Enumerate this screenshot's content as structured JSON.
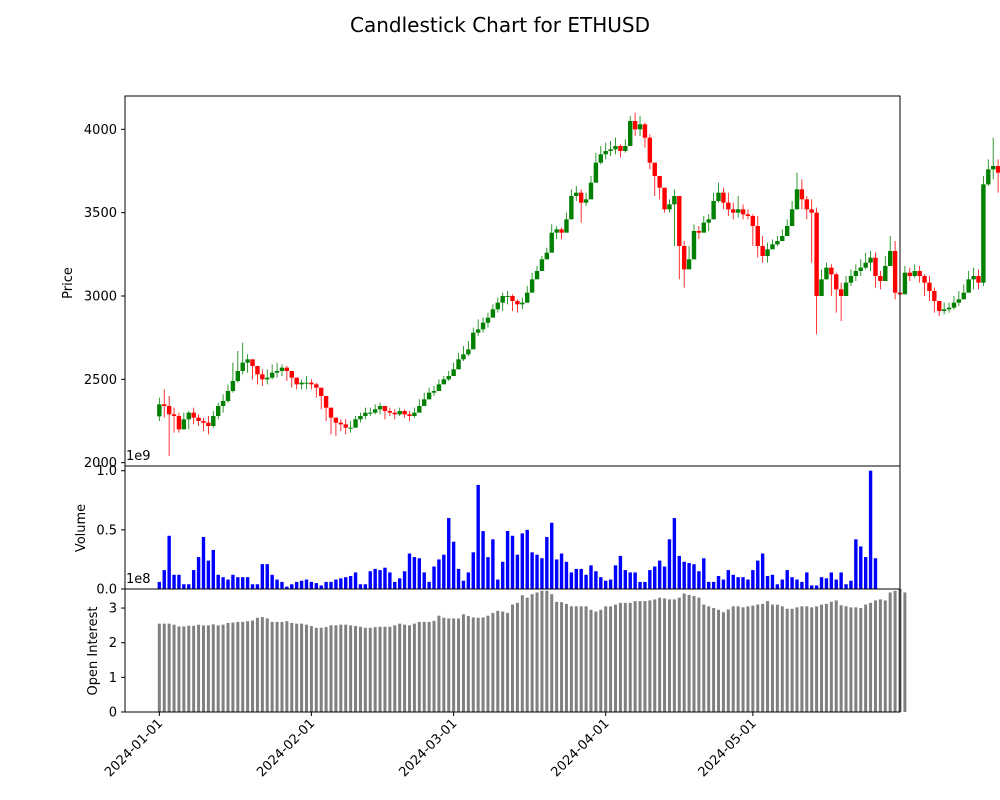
{
  "chart_data": {
    "type": "candlestick",
    "title": "Candlestick Chart for ETHUSD",
    "colors": {
      "up": "#008000",
      "down": "#ff0000",
      "volume": "#0000ff",
      "open_interest": "#808080"
    },
    "x_ticks": [
      "2024-01-01",
      "2024-02-01",
      "2024-03-01",
      "2024-04-01",
      "2024-05-01"
    ],
    "x_range": [
      -7,
      151
    ],
    "panels": [
      {
        "name": "price",
        "ylabel": "Price",
        "ylim": [
          1980,
          4200
        ],
        "yticks": [
          2000,
          2500,
          3000,
          3500,
          4000
        ],
        "tick_labels": [
          "2000",
          "2500",
          "3000",
          "3500",
          "4000"
        ]
      },
      {
        "name": "volume",
        "ylabel": "Volume",
        "ylim": [
          0,
          1.04
        ],
        "yticks": [
          0,
          0.5,
          1.0
        ],
        "tick_labels": [
          "0.0",
          "0.5",
          "1.0"
        ],
        "offset_label": "1e9"
      },
      {
        "name": "open_interest",
        "ylabel": "Open Interest",
        "ylim": [
          0,
          3.55
        ],
        "yticks": [
          0,
          1,
          2,
          3
        ],
        "tick_labels": [
          "0",
          "1",
          "2",
          "3"
        ],
        "offset_label": "1e8"
      }
    ],
    "close": [
      2350,
      2340,
      2290,
      2280,
      2200,
      2260,
      2300,
      2270,
      2250,
      2240,
      2220,
      2280,
      2340,
      2370,
      2430,
      2490,
      2550,
      2600,
      2620,
      2580,
      2530,
      2500,
      2510,
      2540,
      2550,
      2570,
      2550,
      2510,
      2470,
      2480,
      2480,
      2470,
      2450,
      2400,
      2330,
      2270,
      2240,
      2230,
      2210,
      2210,
      2260,
      2280,
      2300,
      2300,
      2320,
      2340,
      2310,
      2300,
      2290,
      2310,
      2290,
      2280,
      2300,
      2340,
      2380,
      2420,
      2430,
      2470,
      2500,
      2520,
      2560,
      2620,
      2650,
      2680,
      2780,
      2800,
      2840,
      2870,
      2920,
      2960,
      3000,
      3000,
      2970,
      2950,
      2960,
      3020,
      3100,
      3150,
      3220,
      3260,
      3380,
      3400,
      3380,
      3460,
      3600,
      3620,
      3560,
      3580,
      3680,
      3800,
      3850,
      3870,
      3880,
      3900,
      3870,
      3900,
      4050,
      4000,
      4030,
      3950,
      3800,
      3720,
      3650,
      3520,
      3550,
      3600,
      3300,
      3160,
      3220,
      3390,
      3380,
      3440,
      3460,
      3570,
      3620,
      3560,
      3520,
      3500,
      3520,
      3490,
      3480,
      3420,
      3300,
      3240,
      3280,
      3310,
      3330,
      3360,
      3420,
      3520,
      3640,
      3580,
      3520,
      3500,
      3000,
      3100,
      3170,
      3130,
      3040,
      3000,
      3080,
      3120,
      3150,
      3170,
      3200,
      3230,
      3120,
      3090,
      3180,
      3270,
      3020,
      3010,
      3140,
      3120,
      3150,
      3120,
      3080,
      3030,
      2970,
      2910,
      2920,
      2930,
      2960,
      2980,
      3020,
      3100,
      3120,
      3080,
      3670,
      3760,
      3780,
      3740
    ],
    "high": [
      2390,
      2440,
      2400,
      2330,
      2300,
      2300,
      2310,
      2330,
      2290,
      2270,
      2280,
      2310,
      2360,
      2410,
      2470,
      2600,
      2670,
      2720,
      2650,
      2620,
      2580,
      2560,
      2560,
      2590,
      2600,
      2590,
      2580,
      2550,
      2510,
      2500,
      2520,
      2500,
      2480,
      2430,
      2360,
      2300,
      2270,
      2260,
      2260,
      2250,
      2280,
      2300,
      2330,
      2330,
      2350,
      2360,
      2340,
      2330,
      2320,
      2330,
      2320,
      2310,
      2330,
      2380,
      2420,
      2450,
      2460,
      2500,
      2520,
      2550,
      2600,
      2660,
      2700,
      2730,
      2810,
      2860,
      2870,
      2900,
      2950,
      2990,
      3020,
      3030,
      3010,
      2980,
      2990,
      3060,
      3140,
      3180,
      3240,
      3290,
      3430,
      3420,
      3410,
      3500,
      3640,
      3660,
      3640,
      3620,
      3720,
      3860,
      3900,
      3920,
      3930,
      3950,
      3910,
      3940,
      4080,
      4100,
      4080,
      4040,
      3970,
      3770,
      3720,
      3630,
      3580,
      3640,
      3540,
      3330,
      3300,
      3430,
      3420,
      3480,
      3490,
      3620,
      3680,
      3650,
      3620,
      3560,
      3600,
      3550,
      3520,
      3490,
      3480,
      3360,
      3320,
      3340,
      3360,
      3400,
      3460,
      3570,
      3740,
      3700,
      3600,
      3580,
      3530,
      3160,
      3200,
      3190,
      3140,
      3080,
      3120,
      3160,
      3190,
      3220,
      3260,
      3270,
      3260,
      3150,
      3240,
      3360,
      3330,
      3050,
      3180,
      3170,
      3190,
      3180,
      3130,
      3120,
      3050,
      2970,
      2960,
      2960,
      3000,
      3030,
      3070,
      3150,
      3170,
      3160,
      3720,
      3820,
      3950,
      3820
    ],
    "low": [
      2250,
      2270,
      2040,
      2180,
      2180,
      2200,
      2200,
      2230,
      2220,
      2190,
      2170,
      2210,
      2260,
      2300,
      2360,
      2420,
      2480,
      2530,
      2540,
      2500,
      2470,
      2460,
      2470,
      2500,
      2510,
      2520,
      2490,
      2450,
      2440,
      2440,
      2440,
      2440,
      2390,
      2320,
      2250,
      2170,
      2160,
      2190,
      2170,
      2180,
      2230,
      2240,
      2260,
      2280,
      2290,
      2290,
      2260,
      2280,
      2260,
      2280,
      2270,
      2250,
      2270,
      2310,
      2350,
      2380,
      2400,
      2440,
      2470,
      2490,
      2520,
      2570,
      2610,
      2640,
      2720,
      2760,
      2780,
      2810,
      2880,
      2900,
      2910,
      2950,
      2910,
      2900,
      2920,
      2960,
      3040,
      3110,
      3180,
      3220,
      3330,
      3340,
      3340,
      3420,
      3520,
      3570,
      3440,
      3540,
      3620,
      3720,
      3790,
      3820,
      3840,
      3850,
      3830,
      3860,
      3990,
      3960,
      3960,
      3890,
      3760,
      3600,
      3580,
      3500,
      3500,
      3300,
      3100,
      3050,
      3180,
      3300,
      3340,
      3400,
      3390,
      3500,
      3560,
      3520,
      3480,
      3460,
      3470,
      3460,
      3460,
      3300,
      3230,
      3200,
      3200,
      3280,
      3300,
      3340,
      3380,
      3460,
      3560,
      3520,
      3460,
      3200,
      2770,
      3000,
      3100,
      3000,
      2900,
      2850,
      3040,
      3060,
      3090,
      3120,
      3160,
      3150,
      3050,
      3040,
      3120,
      3200,
      2980,
      2810,
      3050,
      3090,
      3110,
      3080,
      3000,
      2970,
      2900,
      2880,
      2890,
      2900,
      2920,
      2940,
      2990,
      3070,
      3040,
      3040,
      3060,
      3660,
      3700,
      3620
    ],
    "volume_values": [
      0.06,
      0.16,
      0.45,
      0.12,
      0.12,
      0.04,
      0.04,
      0.16,
      0.27,
      0.44,
      0.24,
      0.33,
      0.12,
      0.1,
      0.08,
      0.12,
      0.1,
      0.1,
      0.1,
      0.04,
      0.04,
      0.21,
      0.21,
      0.12,
      0.08,
      0.06,
      0.02,
      0.04,
      0.06,
      0.07,
      0.08,
      0.06,
      0.05,
      0.03,
      0.06,
      0.06,
      0.08,
      0.09,
      0.1,
      0.11,
      0.14,
      0.04,
      0.04,
      0.15,
      0.17,
      0.16,
      0.18,
      0.14,
      0.06,
      0.09,
      0.15,
      0.3,
      0.27,
      0.26,
      0.14,
      0.06,
      0.19,
      0.25,
      0.29,
      0.6,
      0.4,
      0.17,
      0.07,
      0.14,
      0.31,
      0.88,
      0.49,
      0.27,
      0.42,
      0.08,
      0.23,
      0.49,
      0.45,
      0.29,
      0.47,
      0.5,
      0.31,
      0.29,
      0.26,
      0.44,
      0.56,
      0.25,
      0.3,
      0.23,
      0.14,
      0.17,
      0.17,
      0.12,
      0.2,
      0.15,
      0.1,
      0.07,
      0.08,
      0.2,
      0.28,
      0.16,
      0.14,
      0.14,
      0.06,
      0.06,
      0.16,
      0.19,
      0.24,
      0.19,
      0.42,
      0.6,
      0.28,
      0.23,
      0.22,
      0.21,
      0.15,
      0.26,
      0.06,
      0.06,
      0.11,
      0.08,
      0.16,
      0.12,
      0.1,
      0.1,
      0.08,
      0.16,
      0.24,
      0.3,
      0.11,
      0.12,
      0.04,
      0.08,
      0.16,
      0.1,
      0.08,
      0.06,
      0.14,
      0.03,
      0.03,
      0.1,
      0.09,
      0.14,
      0.08,
      0.14,
      0.04,
      0.07,
      0.42,
      0.36,
      0.27,
      1.0,
      0.26
    ],
    "open_interest_values": [
      2.55,
      2.55,
      2.55,
      2.52,
      2.47,
      2.47,
      2.49,
      2.49,
      2.52,
      2.5,
      2.5,
      2.53,
      2.5,
      2.52,
      2.57,
      2.58,
      2.6,
      2.6,
      2.62,
      2.64,
      2.72,
      2.74,
      2.7,
      2.6,
      2.6,
      2.6,
      2.62,
      2.57,
      2.55,
      2.55,
      2.52,
      2.48,
      2.43,
      2.43,
      2.45,
      2.5,
      2.5,
      2.52,
      2.52,
      2.5,
      2.48,
      2.46,
      2.43,
      2.43,
      2.45,
      2.46,
      2.46,
      2.46,
      2.5,
      2.55,
      2.52,
      2.5,
      2.55,
      2.6,
      2.6,
      2.6,
      2.63,
      2.78,
      2.72,
      2.7,
      2.7,
      2.7,
      2.82,
      2.77,
      2.73,
      2.72,
      2.73,
      2.78,
      2.86,
      2.92,
      2.9,
      2.86,
      3.1,
      3.15,
      3.37,
      3.3,
      3.4,
      3.45,
      3.5,
      3.5,
      3.4,
      3.18,
      3.17,
      3.12,
      3.05,
      3.05,
      3.05,
      3.05,
      2.95,
      2.9,
      2.95,
      3.05,
      3.05,
      3.1,
      3.15,
      3.15,
      3.15,
      3.2,
      3.2,
      3.2,
      3.22,
      3.25,
      3.3,
      3.28,
      3.25,
      3.25,
      3.3,
      3.42,
      3.38,
      3.35,
      3.3,
      3.1,
      3.05,
      3.0,
      2.95,
      2.88,
      2.96,
      3.05,
      3.05,
      3.02,
      3.05,
      3.07,
      3.1,
      3.12,
      3.2,
      3.1,
      3.1,
      3.05,
      2.98,
      2.98,
      3.02,
      3.05,
      3.05,
      3.02,
      3.05,
      3.1,
      3.12,
      3.18,
      3.22,
      3.08,
      3.05,
      3.02,
      3.02,
      3.0,
      3.1,
      3.15,
      3.22,
      3.25,
      3.22,
      3.45,
      3.5,
      3.55,
      3.45
    ]
  }
}
